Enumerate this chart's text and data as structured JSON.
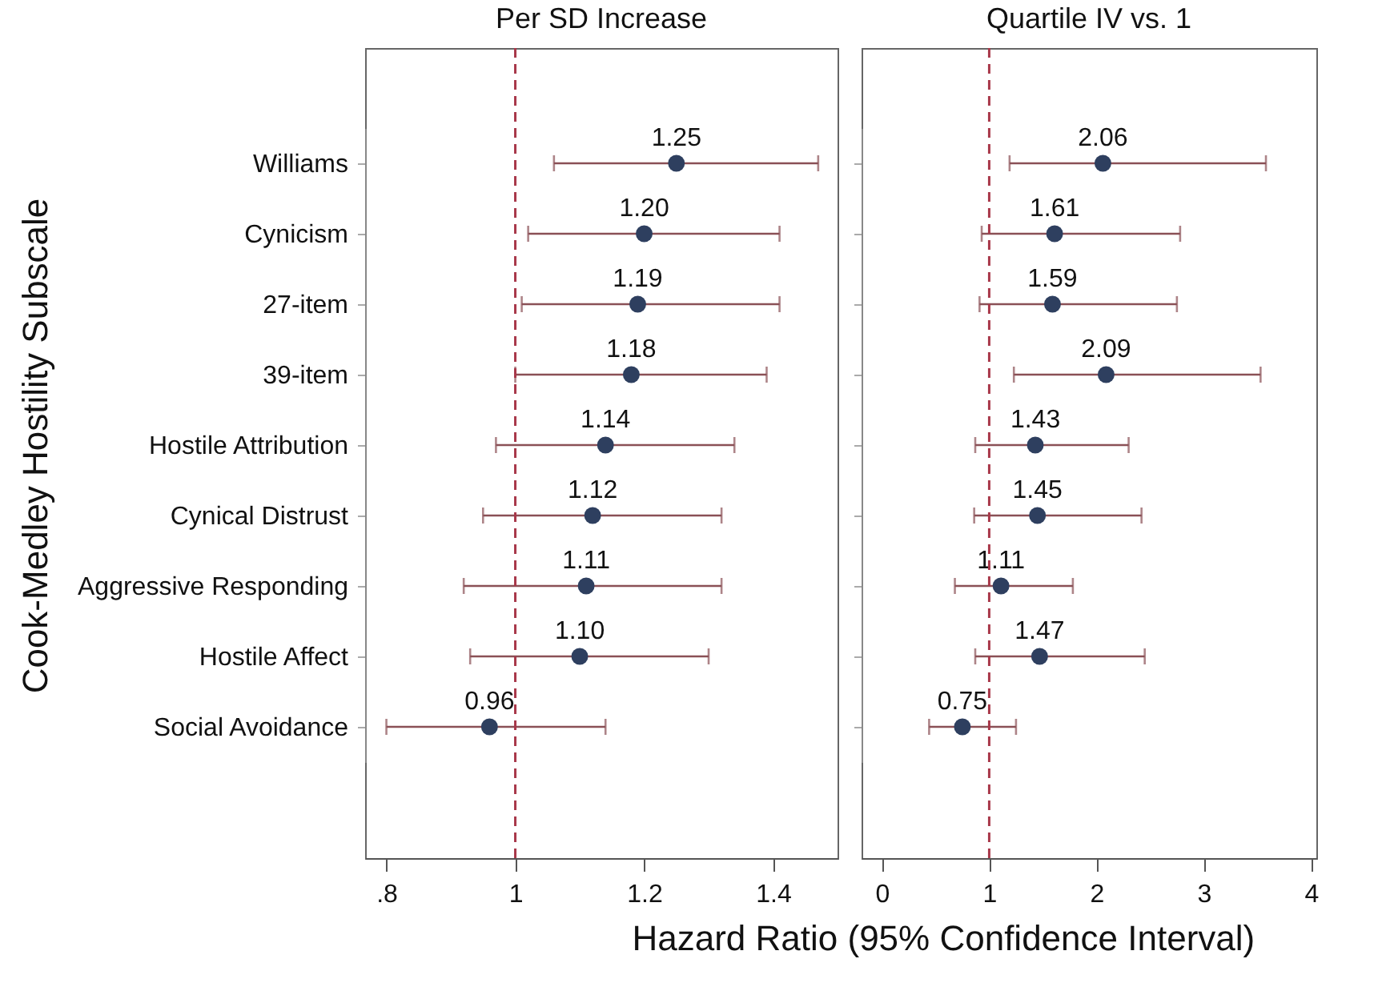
{
  "chart_data": [
    {
      "type": "scatter",
      "title": "Per SD Increase",
      "xlabel": "Hazard Ratio (95% Confidence Interval)",
      "ylabel": "Cook-Medley Hostility Subscale",
      "categories": [
        "Williams",
        "Cynicism",
        "27-item",
        "39-item",
        "Hostile Attribution",
        "Cynical Distrust",
        "Aggressive Responding",
        "Hostile Affect",
        "Social Avoidance"
      ],
      "series": [
        {
          "color": "#2e3f5f",
          "values": [
            1.25,
            1.2,
            1.19,
            1.18,
            1.14,
            1.12,
            1.11,
            1.1,
            0.96
          ],
          "errors": [
            [
              1.06,
              1.47
            ],
            [
              1.02,
              1.41
            ],
            [
              1.01,
              1.41
            ],
            [
              1.0,
              1.39
            ],
            [
              0.97,
              1.34
            ],
            [
              0.95,
              1.32
            ],
            [
              0.92,
              1.32
            ],
            [
              0.93,
              1.3
            ],
            [
              0.8,
              1.14
            ]
          ]
        }
      ],
      "value_labels": [
        "1.25",
        "1.20",
        "1.19",
        "1.18",
        "1.14",
        "1.12",
        "1.11",
        "1.10",
        "0.96"
      ],
      "orientation": "horizontal",
      "xlim": [
        0.767,
        1.5
      ],
      "xticks": [
        {
          "value": 0.8,
          "label": ".8"
        },
        1,
        1.2,
        1.4
      ],
      "ref_lines": [
        {
          "axis": "x",
          "value": 1,
          "color": "#a8384a",
          "line_style": "dashed"
        }
      ],
      "marker": "circle",
      "grid": false
    },
    {
      "type": "scatter",
      "title": "Quartile IV vs. 1",
      "categories": [
        "Williams",
        "Cynicism",
        "27-item",
        "39-item",
        "Hostile Attribution",
        "Cynical Distrust",
        "Aggressive Responding",
        "Hostile Affect",
        "Social Avoidance"
      ],
      "series": [
        {
          "color": "#2e3f5f",
          "values": [
            2.06,
            1.61,
            1.59,
            2.09,
            1.43,
            1.45,
            1.11,
            1.47,
            0.75
          ],
          "errors": [
            [
              1.19,
              3.58
            ],
            [
              0.93,
              2.78
            ],
            [
              0.91,
              2.75
            ],
            [
              1.23,
              3.53
            ],
            [
              0.87,
              2.3
            ],
            [
              0.86,
              2.42
            ],
            [
              0.68,
              1.78
            ],
            [
              0.87,
              2.45
            ],
            [
              0.44,
              1.25
            ]
          ]
        }
      ],
      "value_labels": [
        "2.06",
        "1.61",
        "1.59",
        "2.09",
        "1.43",
        "1.45",
        "1.11",
        "1.47",
        "0.75"
      ],
      "orientation": "horizontal",
      "xlim": [
        -0.19,
        4.05
      ],
      "xticks": [
        0,
        1,
        2,
        3,
        4
      ],
      "ref_lines": [
        {
          "axis": "x",
          "value": 1,
          "color": "#a8384a",
          "line_style": "dashed"
        }
      ],
      "marker": "circle",
      "grid": false,
      "tick_labels": "x"
    }
  ]
}
